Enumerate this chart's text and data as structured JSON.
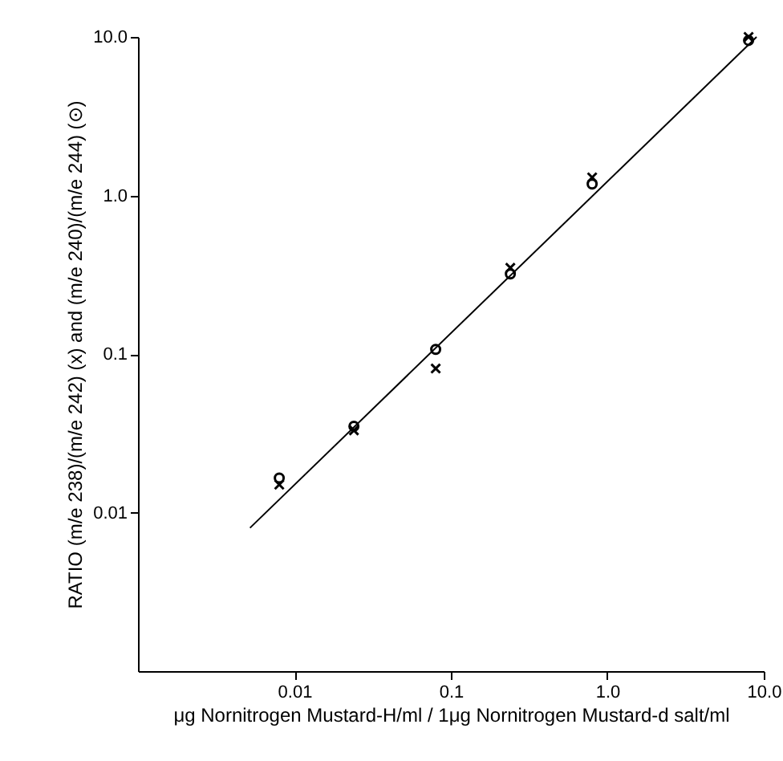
{
  "chart_data": {
    "type": "scatter",
    "xlabel": "μg Nornitrogen Mustard-H/ml / 1μg Nornitrogen Mustard-d salt/ml",
    "ylabel": "RATIO  (m/e 238)/(m/e 242) (x) and (m/e 240)/(m/e 244) (⊙)",
    "x": [
      0.008,
      0.024,
      0.08,
      0.24,
      0.8,
      8
    ],
    "series": [
      {
        "color": "#000000",
        "marker": "cross",
        "values": [
          0.015,
          0.033,
          0.081,
          0.35,
          1.3,
          10
        ]
      },
      {
        "color": "#000000",
        "marker": "circle",
        "values": [
          0.0165,
          0.035,
          0.107,
          0.32,
          1.18,
          9.5
        ]
      },
      {
        "type": "line",
        "color": "#000000",
        "marker": "none",
        "line_style": "solid",
        "x": [
          0.0052,
          9
        ],
        "values": [
          0.008,
          10
        ]
      }
    ],
    "log": "xy",
    "grid": false,
    "xlim": [
      0.001,
      10
    ],
    "ylim": [
      0.001,
      10
    ],
    "xticks": [
      0.01,
      0.1,
      {
        "value": 1,
        "label": "1.0"
      },
      {
        "value": 10,
        "label": "10.0"
      }
    ],
    "yticks": [
      0.01,
      0.1,
      {
        "value": 1,
        "label": "1.0"
      },
      {
        "value": 10,
        "label": "10.0"
      }
    ]
  }
}
